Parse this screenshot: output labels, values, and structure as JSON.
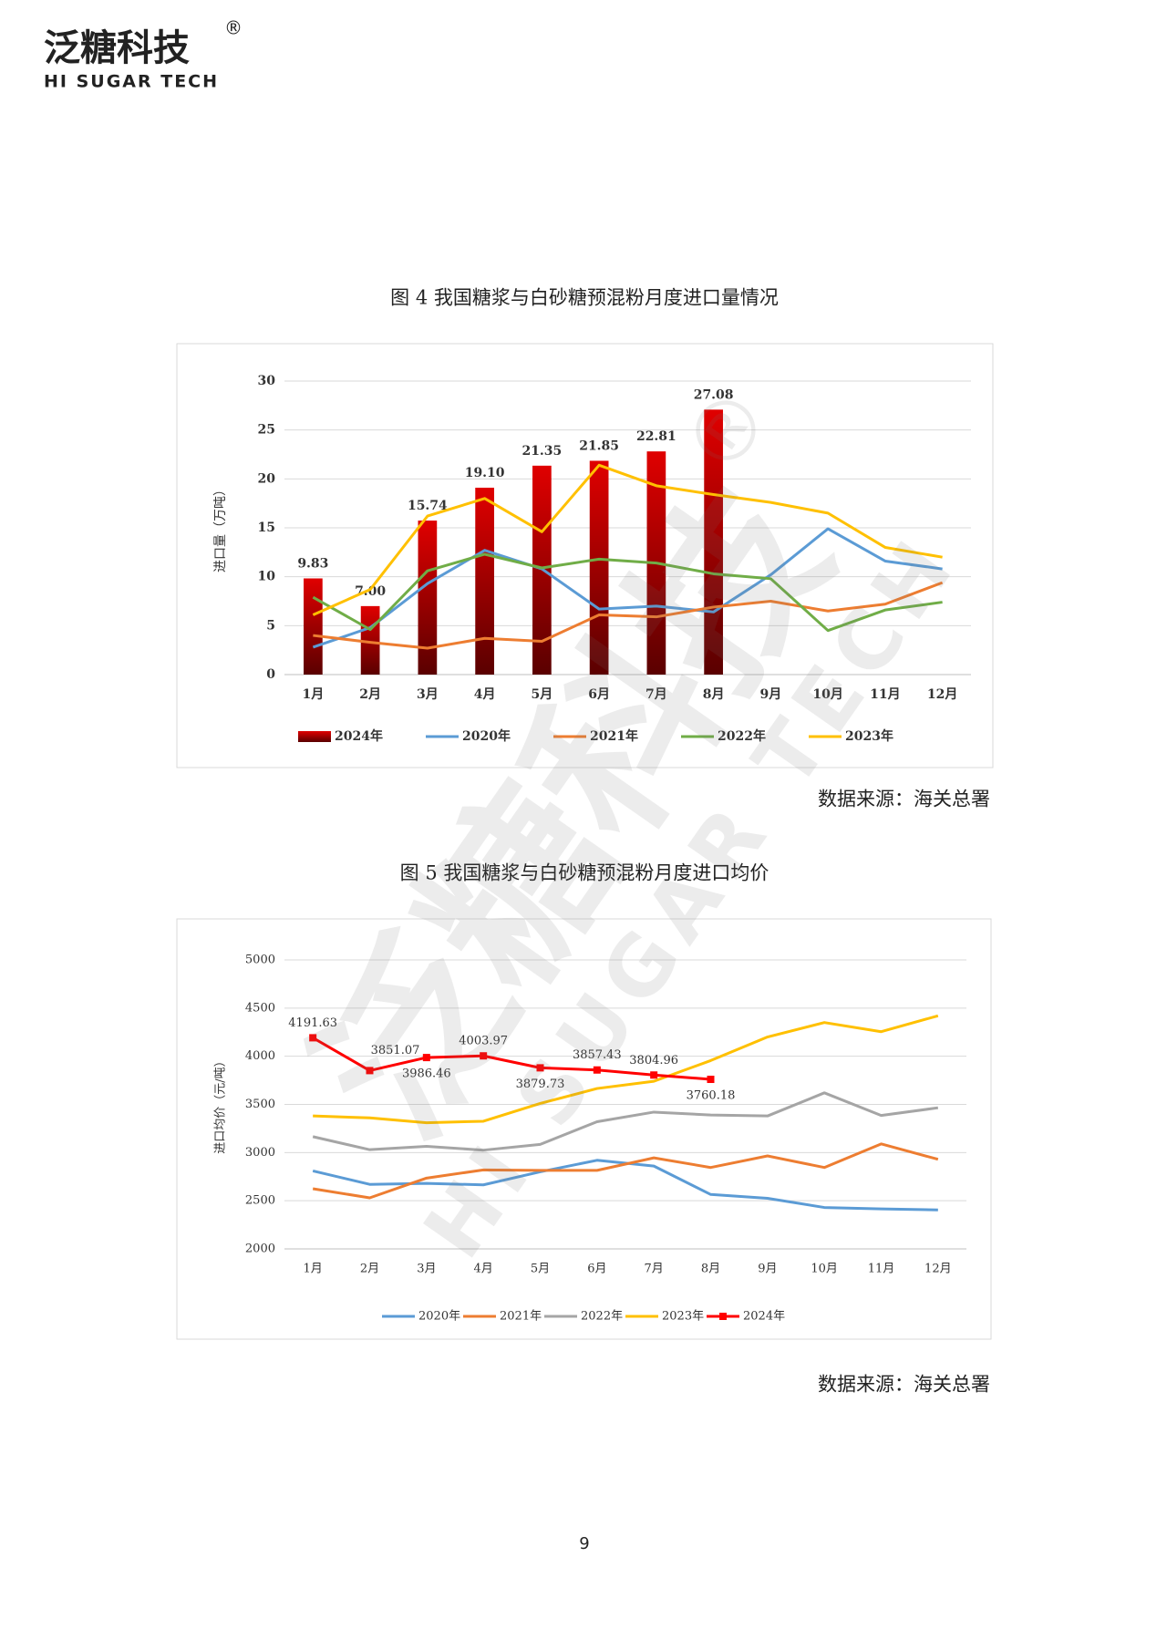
{
  "header": {
    "brand": "泛糖科技",
    "registered": "®",
    "brand_en": "HI SUGAR TECH"
  },
  "watermark": {
    "brand": "泛糖科技",
    "registered": "®",
    "brand_en": "HI SUGAR TECH"
  },
  "chart_data": [
    {
      "type": "bar",
      "title": "图 4  我国糖浆与白砂糖预混粉月度进口量情况",
      "y_label": "进口量（万吨）",
      "categories": [
        "1月",
        "2月",
        "3月",
        "4月",
        "5月",
        "6月",
        "7月",
        "8月",
        "9月",
        "10月",
        "11月",
        "12月"
      ],
      "ylim": [
        0,
        30
      ],
      "yticks": [
        0,
        5,
        10,
        15,
        20,
        25,
        30
      ],
      "grid": true,
      "series": [
        {
          "name": "2024年",
          "type": "bar",
          "color": "#e00000",
          "values": [
            9.83,
            7.0,
            15.74,
            19.1,
            21.35,
            21.85,
            22.81,
            27.08,
            null,
            null,
            null,
            null
          ],
          "value_labels": [
            "9.83",
            "7.00",
            "15.74",
            "19.10",
            "21.35",
            "21.85",
            "22.81",
            "27.08",
            null,
            null,
            null,
            null
          ]
        },
        {
          "name": "2020年",
          "type": "line",
          "color": "#5b9bd5",
          "values": [
            2.8,
            4.8,
            9.3,
            12.7,
            10.8,
            6.7,
            7.0,
            6.4,
            10.2,
            14.9,
            11.6,
            10.8
          ]
        },
        {
          "name": "2021年",
          "type": "line",
          "color": "#ed7d31",
          "values": [
            4.0,
            3.3,
            2.7,
            3.7,
            3.4,
            6.1,
            5.9,
            6.9,
            7.5,
            6.5,
            7.2,
            9.4
          ]
        },
        {
          "name": "2022年",
          "type": "line",
          "color": "#70ad47",
          "values": [
            7.9,
            4.6,
            10.6,
            12.3,
            10.9,
            11.8,
            11.4,
            10.3,
            9.8,
            4.5,
            6.6,
            7.4
          ]
        },
        {
          "name": "2023年",
          "type": "line",
          "color": "#ffc000",
          "values": [
            6.1,
            8.7,
            16.2,
            18.0,
            14.6,
            21.4,
            19.3,
            18.4,
            17.6,
            16.5,
            13.0,
            12.0
          ]
        }
      ],
      "source": "数据来源：海关总署"
    },
    {
      "type": "line",
      "title": "图 5  我国糖浆与白砂糖预混粉月度进口均价",
      "y_label": "进口均价（元/吨）",
      "categories": [
        "1月",
        "2月",
        "3月",
        "4月",
        "5月",
        "6月",
        "7月",
        "8月",
        "9月",
        "10月",
        "11月",
        "12月"
      ],
      "ylim": [
        2000,
        5000
      ],
      "yticks": [
        2000,
        2500,
        3000,
        3500,
        4000,
        4500,
        5000
      ],
      "grid": true,
      "series": [
        {
          "name": "2020年",
          "type": "line",
          "color": "#5b9bd5",
          "values": [
            2810,
            2670,
            2680,
            2665,
            2800,
            2920,
            2860,
            2565,
            2525,
            2430,
            2415,
            2405
          ]
        },
        {
          "name": "2021年",
          "type": "line",
          "color": "#ed7d31",
          "values": [
            2625,
            2530,
            2735,
            2820,
            2815,
            2815,
            2945,
            2845,
            2965,
            2845,
            3090,
            2930
          ]
        },
        {
          "name": "2022年",
          "type": "line",
          "color": "#a5a5a5",
          "values": [
            3165,
            3030,
            3065,
            3025,
            3085,
            3320,
            3420,
            3390,
            3380,
            3620,
            3385,
            3465
          ]
        },
        {
          "name": "2023年",
          "type": "line",
          "color": "#ffc000",
          "values": [
            3380,
            3360,
            3310,
            3325,
            3510,
            3665,
            3740,
            3955,
            4200,
            4350,
            4255,
            4420
          ]
        },
        {
          "name": "2024年",
          "type": "line",
          "color": "#ff0000",
          "marker": "square",
          "values": [
            4191.63,
            3851.07,
            3986.46,
            4003.97,
            3879.73,
            3857.43,
            3804.96,
            3760.18,
            null,
            null,
            null,
            null
          ],
          "show_labels": true
        }
      ],
      "source": "数据来源：海关总署"
    }
  ],
  "page_number": "9"
}
